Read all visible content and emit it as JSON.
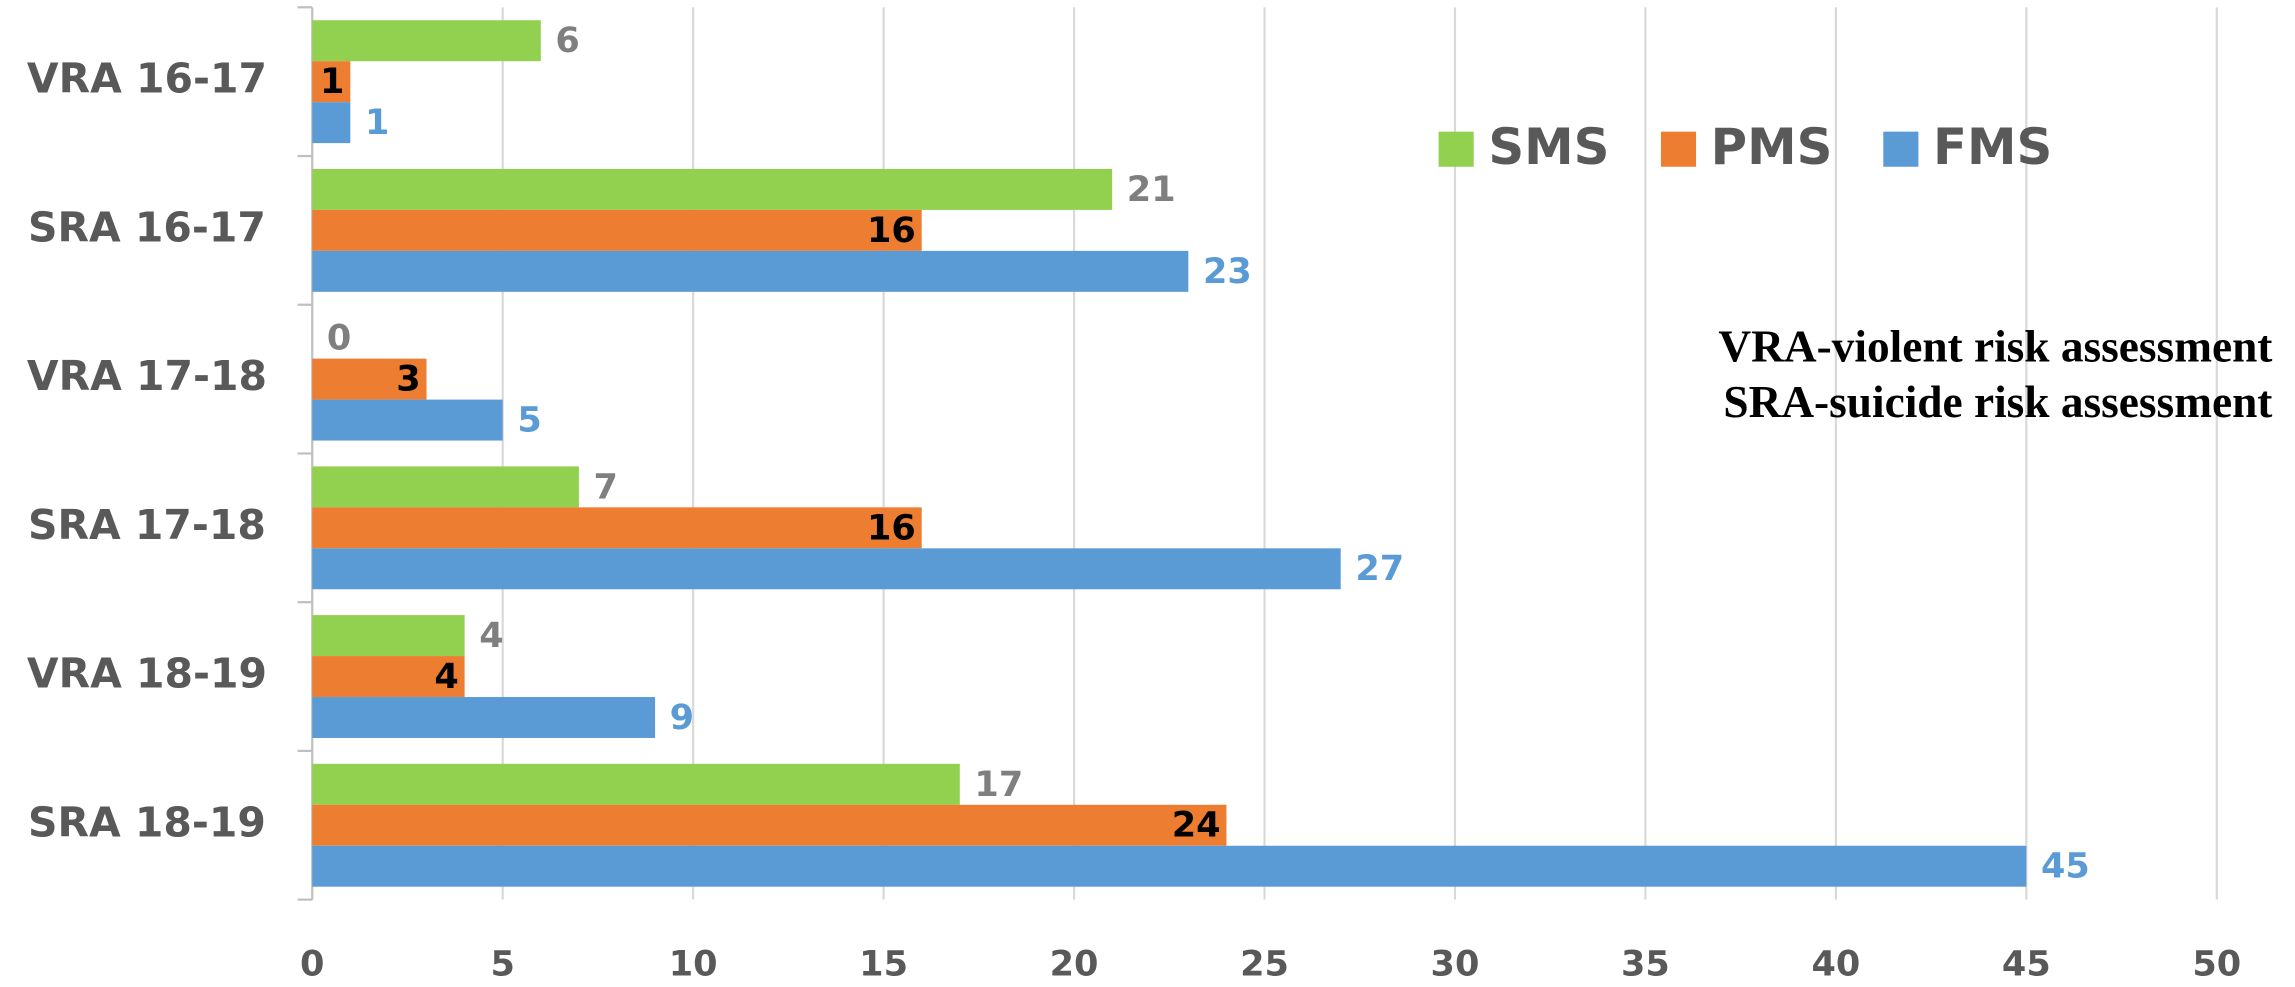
{
  "chart_data": {
    "type": "bar",
    "orientation": "horizontal",
    "categories": [
      "VRA 16-17",
      "SRA 16-17",
      "VRA 17-18",
      "SRA 17-18",
      "VRA 18-19",
      "SRA  18-19"
    ],
    "series": [
      {
        "name": "SMS",
        "color": "#92d050",
        "values": [
          6,
          21,
          0,
          7,
          4,
          17
        ]
      },
      {
        "name": "PMS",
        "color": "#ed7d31",
        "values": [
          1,
          16,
          3,
          16,
          4,
          24
        ]
      },
      {
        "name": "FMS",
        "color": "#5b9bd5",
        "values": [
          1,
          23,
          5,
          27,
          9,
          45
        ]
      }
    ],
    "xlim": [
      0,
      50
    ],
    "xticks": [
      0,
      5,
      10,
      15,
      20,
      25,
      30,
      35,
      40,
      45,
      50
    ],
    "grid": true,
    "annotations": [
      "VRA-violent risk assessment",
      "SRA-suicide risk assessment"
    ]
  }
}
